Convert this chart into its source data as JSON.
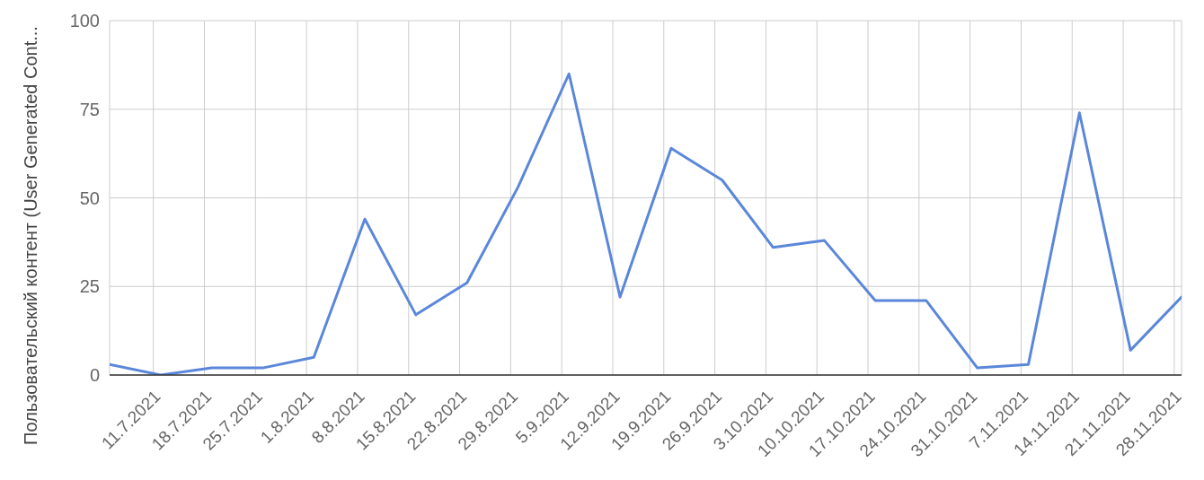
{
  "chart_data": {
    "type": "line",
    "ylabel": "Пользовательский контент (User Generated Cont...",
    "x": [
      "2021-07-05",
      "2021-07-12",
      "2021-07-19",
      "2021-07-26",
      "2021-08-02",
      "2021-08-09",
      "2021-08-16",
      "2021-08-23",
      "2021-08-30",
      "2021-09-06",
      "2021-09-13",
      "2021-09-20",
      "2021-09-27",
      "2021-10-04",
      "2021-10-11",
      "2021-10-18",
      "2021-10-25",
      "2021-11-01",
      "2021-11-08",
      "2021-11-15",
      "2021-11-22",
      "2021-11-29"
    ],
    "values": [
      3,
      0,
      2,
      2,
      5,
      44,
      17,
      26,
      53,
      85,
      22,
      64,
      55,
      36,
      38,
      21,
      21,
      2,
      3,
      74,
      7,
      22
    ],
    "color": "#5b87da",
    "xlim": [
      "2021-07-05",
      "2021-11-29"
    ],
    "xticks": [
      {
        "value": "2021-07-11",
        "label": "11.7.2021"
      },
      {
        "value": "2021-07-18",
        "label": "18.7.2021"
      },
      {
        "value": "2021-07-25",
        "label": "25.7.2021"
      },
      {
        "value": "2021-08-01",
        "label": "1.8.2021"
      },
      {
        "value": "2021-08-08",
        "label": "8.8.2021"
      },
      {
        "value": "2021-08-15",
        "label": "15.8.2021"
      },
      {
        "value": "2021-08-22",
        "label": "22.8.2021"
      },
      {
        "value": "2021-08-29",
        "label": "29.8.2021"
      },
      {
        "value": "2021-09-05",
        "label": "5.9.2021"
      },
      {
        "value": "2021-09-12",
        "label": "12.9.2021"
      },
      {
        "value": "2021-09-19",
        "label": "19.9.2021"
      },
      {
        "value": "2021-09-26",
        "label": "26.9.2021"
      },
      {
        "value": "2021-10-03",
        "label": "3.10.2021"
      },
      {
        "value": "2021-10-10",
        "label": "10.10.2021"
      },
      {
        "value": "2021-10-17",
        "label": "17.10.2021"
      },
      {
        "value": "2021-10-24",
        "label": "24.10.2021"
      },
      {
        "value": "2021-10-31",
        "label": "31.10.2021"
      },
      {
        "value": "2021-11-07",
        "label": "7.11.2021"
      },
      {
        "value": "2021-11-14",
        "label": "14.11.2021"
      },
      {
        "value": "2021-11-21",
        "label": "21.11.2021"
      },
      {
        "value": "2021-11-28",
        "label": "28.11.2021"
      }
    ],
    "ylim": [
      0,
      100
    ],
    "yticks": [
      0,
      25,
      50,
      75,
      100
    ],
    "grid": true,
    "marker": "none"
  }
}
